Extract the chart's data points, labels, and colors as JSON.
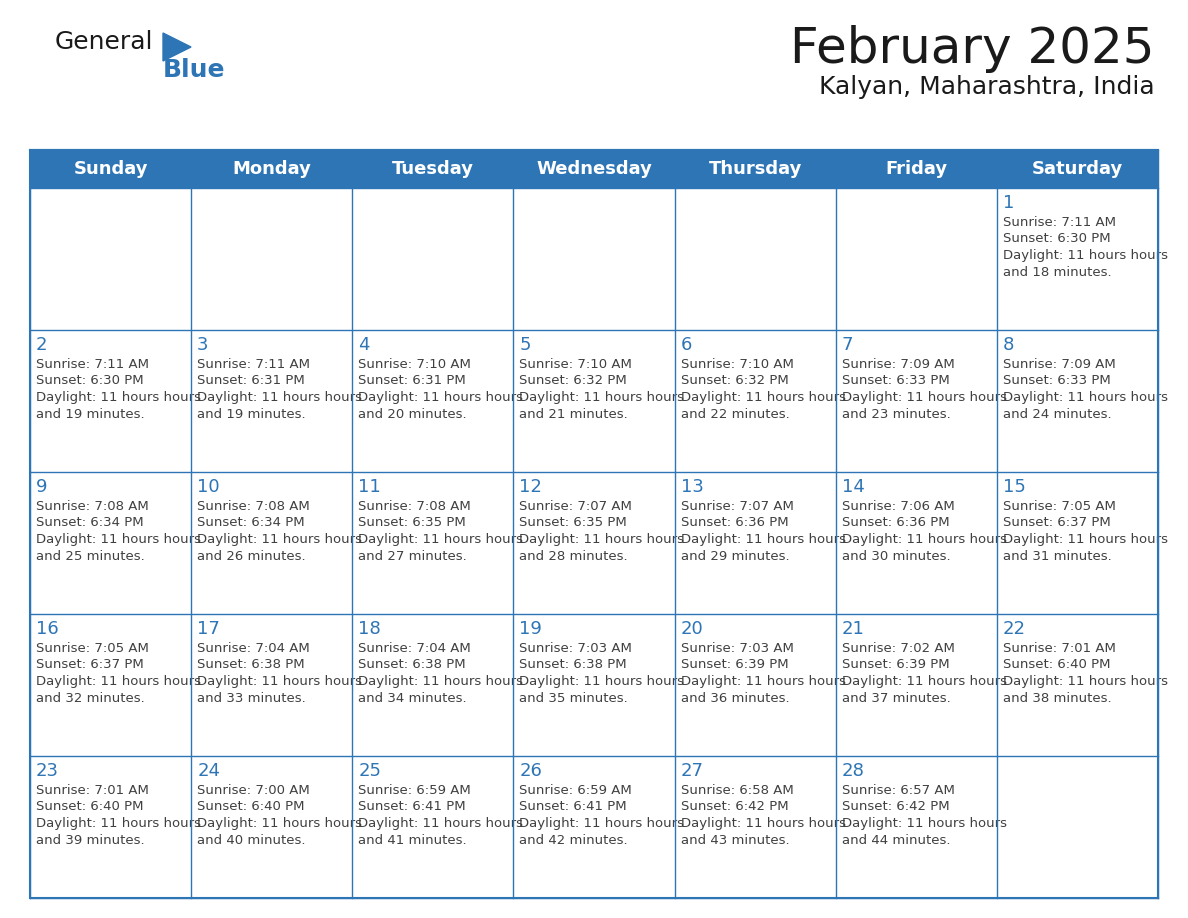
{
  "title": "February 2025",
  "subtitle": "Kalyan, Maharashtra, India",
  "header_color": "#2E75B6",
  "header_text_color": "#FFFFFF",
  "cell_border_color": "#2E75B6",
  "day_number_color": "#2E75B6",
  "info_text_color": "#404040",
  "background_color": "#FFFFFF",
  "days_of_week": [
    "Sunday",
    "Monday",
    "Tuesday",
    "Wednesday",
    "Thursday",
    "Friday",
    "Saturday"
  ],
  "calendar_data": [
    [
      null,
      null,
      null,
      null,
      null,
      null,
      1
    ],
    [
      2,
      3,
      4,
      5,
      6,
      7,
      8
    ],
    [
      9,
      10,
      11,
      12,
      13,
      14,
      15
    ],
    [
      16,
      17,
      18,
      19,
      20,
      21,
      22
    ],
    [
      23,
      24,
      25,
      26,
      27,
      28,
      null
    ]
  ],
  "sunrise_data": {
    "1": "7:11 AM",
    "2": "7:11 AM",
    "3": "7:11 AM",
    "4": "7:10 AM",
    "5": "7:10 AM",
    "6": "7:10 AM",
    "7": "7:09 AM",
    "8": "7:09 AM",
    "9": "7:08 AM",
    "10": "7:08 AM",
    "11": "7:08 AM",
    "12": "7:07 AM",
    "13": "7:07 AM",
    "14": "7:06 AM",
    "15": "7:05 AM",
    "16": "7:05 AM",
    "17": "7:04 AM",
    "18": "7:04 AM",
    "19": "7:03 AM",
    "20": "7:03 AM",
    "21": "7:02 AM",
    "22": "7:01 AM",
    "23": "7:01 AM",
    "24": "7:00 AM",
    "25": "6:59 AM",
    "26": "6:59 AM",
    "27": "6:58 AM",
    "28": "6:57 AM"
  },
  "sunset_data": {
    "1": "6:30 PM",
    "2": "6:30 PM",
    "3": "6:31 PM",
    "4": "6:31 PM",
    "5": "6:32 PM",
    "6": "6:32 PM",
    "7": "6:33 PM",
    "8": "6:33 PM",
    "9": "6:34 PM",
    "10": "6:34 PM",
    "11": "6:35 PM",
    "12": "6:35 PM",
    "13": "6:36 PM",
    "14": "6:36 PM",
    "15": "6:37 PM",
    "16": "6:37 PM",
    "17": "6:38 PM",
    "18": "6:38 PM",
    "19": "6:38 PM",
    "20": "6:39 PM",
    "21": "6:39 PM",
    "22": "6:40 PM",
    "23": "6:40 PM",
    "24": "6:40 PM",
    "25": "6:41 PM",
    "26": "6:41 PM",
    "27": "6:42 PM",
    "28": "6:42 PM"
  },
  "daylight_data": {
    "1": "11 hours and 18 minutes",
    "2": "11 hours and 19 minutes",
    "3": "11 hours and 19 minutes",
    "4": "11 hours and 20 minutes",
    "5": "11 hours and 21 minutes",
    "6": "11 hours and 22 minutes",
    "7": "11 hours and 23 minutes",
    "8": "11 hours and 24 minutes",
    "9": "11 hours and 25 minutes",
    "10": "11 hours and 26 minutes",
    "11": "11 hours and 27 minutes",
    "12": "11 hours and 28 minutes",
    "13": "11 hours and 29 minutes",
    "14": "11 hours and 30 minutes",
    "15": "11 hours and 31 minutes",
    "16": "11 hours and 32 minutes",
    "17": "11 hours and 33 minutes",
    "18": "11 hours and 34 minutes",
    "19": "11 hours and 35 minutes",
    "20": "11 hours and 36 minutes",
    "21": "11 hours and 37 minutes",
    "22": "11 hours and 38 minutes",
    "23": "11 hours and 39 minutes",
    "24": "11 hours and 40 minutes",
    "25": "11 hours and 41 minutes",
    "26": "11 hours and 42 minutes",
    "27": "11 hours and 43 minutes",
    "28": "11 hours and 44 minutes"
  }
}
